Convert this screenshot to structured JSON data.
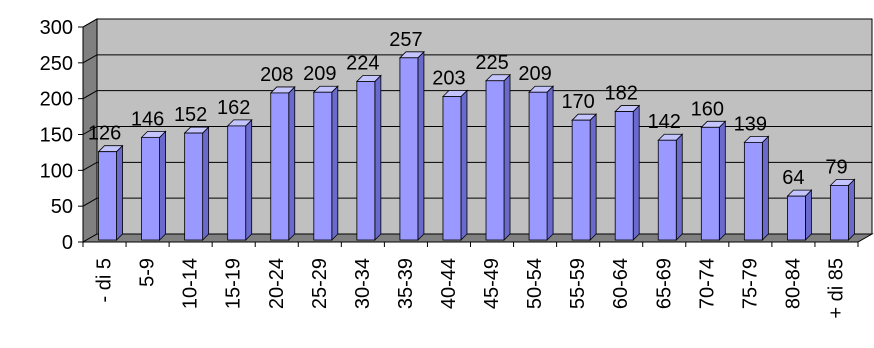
{
  "chart_data": {
    "type": "bar",
    "title": "",
    "xlabel": "",
    "ylabel": "",
    "ylim": [
      0,
      300
    ],
    "yticks": [
      0,
      50,
      100,
      150,
      200,
      250,
      300
    ],
    "grid": true,
    "legend": "none",
    "style": "3d-column",
    "categories": [
      "- di 5",
      "5-9",
      "10-14",
      "15-19",
      "20-24",
      "25-29",
      "30-34",
      "35-39",
      "40-44",
      "45-49",
      "50-54",
      "55-59",
      "60-64",
      "65-69",
      "70-74",
      "75-79",
      "80-84",
      "+ di 85"
    ],
    "values": [
      126,
      146,
      152,
      162,
      208,
      209,
      224,
      257,
      203,
      225,
      209,
      170,
      182,
      142,
      160,
      139,
      64,
      79
    ]
  },
  "colors": {
    "bar_front": "#9999ff",
    "bar_side": "#6a6acc",
    "bar_top": "#c4c4ff",
    "bar_outline": "#000000",
    "wall": "#c0c0c0",
    "wall_side": "#808080",
    "floor": "#808080",
    "gridline": "#000000"
  }
}
